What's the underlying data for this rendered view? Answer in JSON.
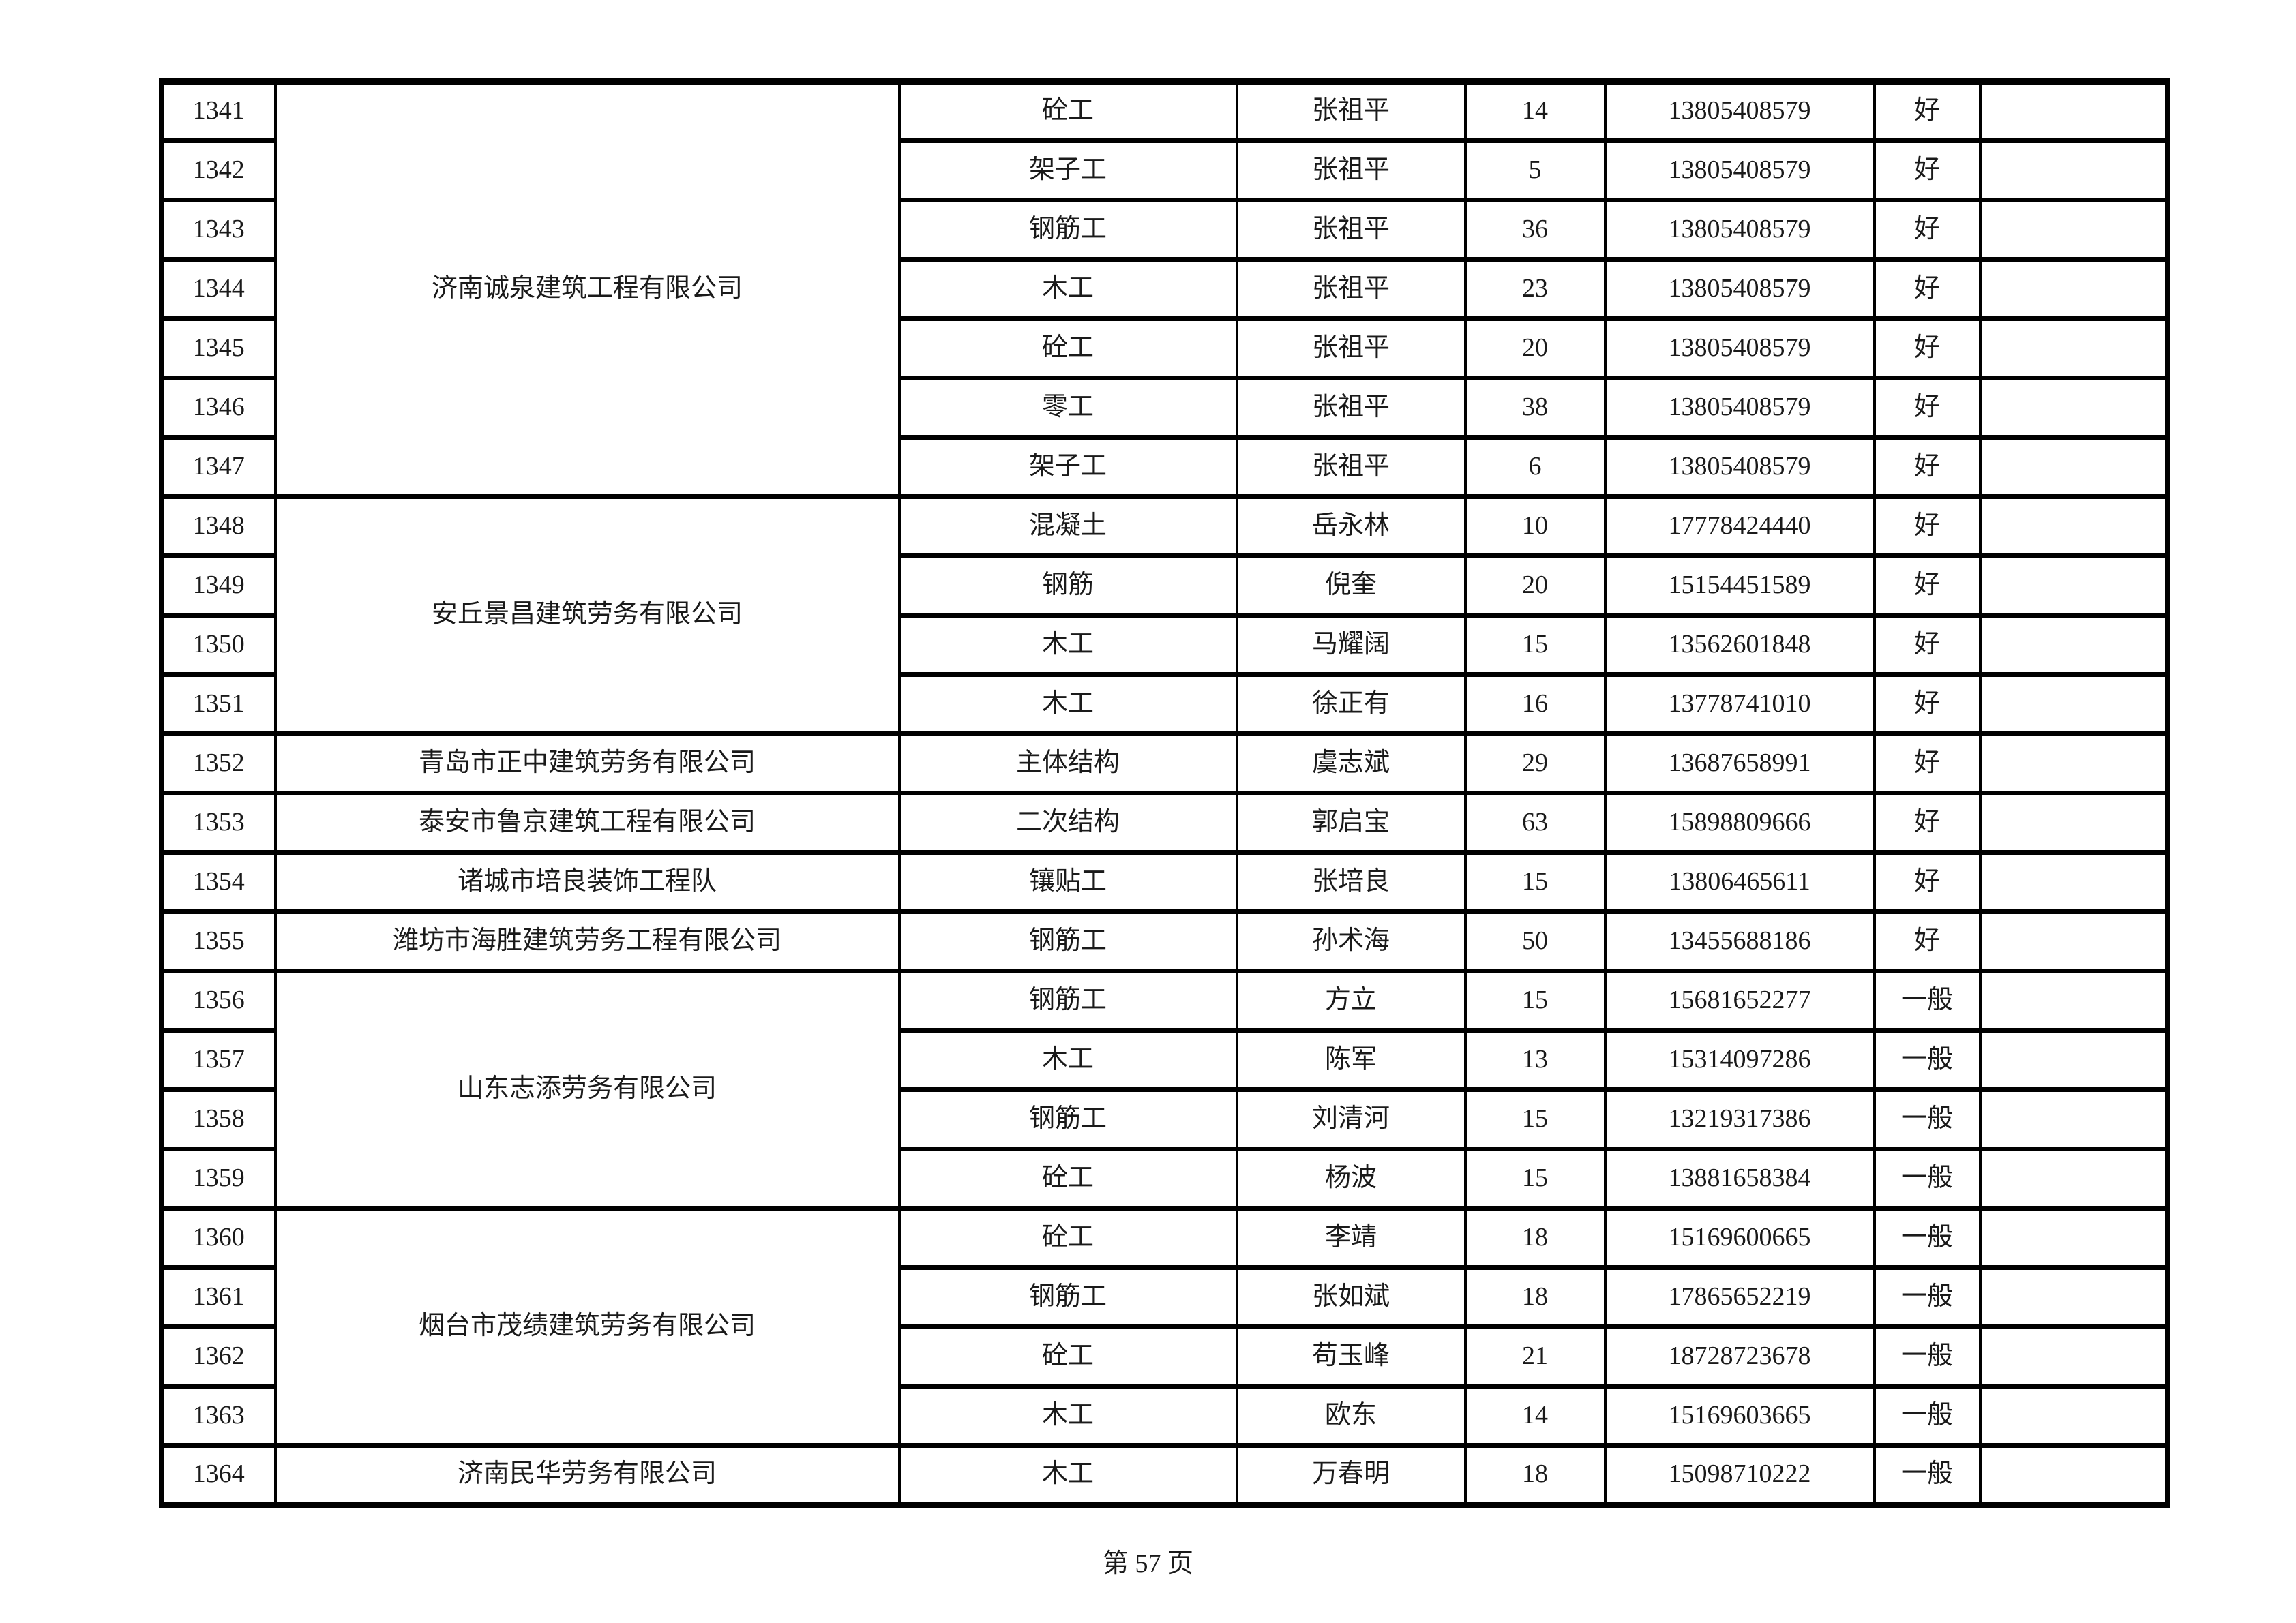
{
  "page": {
    "footer_text": "第 57 页"
  },
  "table": {
    "rows": [
      {
        "no": "1341",
        "company": "济南诚泉建筑工程有限公司",
        "company_rowspan": 7,
        "worktype": "砼工",
        "person": "张祖平",
        "count": "14",
        "phone": "13805408579",
        "rating": "好",
        "note": ""
      },
      {
        "no": "1342",
        "worktype": "架子工",
        "person": "张祖平",
        "count": "5",
        "phone": "13805408579",
        "rating": "好",
        "note": ""
      },
      {
        "no": "1343",
        "worktype": "钢筋工",
        "person": "张祖平",
        "count": "36",
        "phone": "13805408579",
        "rating": "好",
        "note": ""
      },
      {
        "no": "1344",
        "worktype": "木工",
        "person": "张祖平",
        "count": "23",
        "phone": "13805408579",
        "rating": "好",
        "note": ""
      },
      {
        "no": "1345",
        "worktype": "砼工",
        "person": "张祖平",
        "count": "20",
        "phone": "13805408579",
        "rating": "好",
        "note": ""
      },
      {
        "no": "1346",
        "worktype": "零工",
        "person": "张祖平",
        "count": "38",
        "phone": "13805408579",
        "rating": "好",
        "note": ""
      },
      {
        "no": "1347",
        "worktype": "架子工",
        "person": "张祖平",
        "count": "6",
        "phone": "13805408579",
        "rating": "好",
        "note": ""
      },
      {
        "no": "1348",
        "company": "安丘景昌建筑劳务有限公司",
        "company_rowspan": 4,
        "worktype": "混凝土",
        "person": "岳永林",
        "count": "10",
        "phone": "17778424440",
        "rating": "好",
        "note": ""
      },
      {
        "no": "1349",
        "worktype": "钢筋",
        "person": "倪奎",
        "count": "20",
        "phone": "15154451589",
        "rating": "好",
        "note": ""
      },
      {
        "no": "1350",
        "worktype": "木工",
        "person": "马耀阔",
        "count": "15",
        "phone": "13562601848",
        "rating": "好",
        "note": ""
      },
      {
        "no": "1351",
        "worktype": "木工",
        "person": "徐正有",
        "count": "16",
        "phone": "13778741010",
        "rating": "好",
        "note": ""
      },
      {
        "no": "1352",
        "company": "青岛市正中建筑劳务有限公司",
        "company_rowspan": 1,
        "worktype": "主体结构",
        "person": "虞志斌",
        "count": "29",
        "phone": "13687658991",
        "rating": "好",
        "note": ""
      },
      {
        "no": "1353",
        "company": "泰安市鲁京建筑工程有限公司",
        "company_rowspan": 1,
        "worktype": "二次结构",
        "person": "郭启宝",
        "count": "63",
        "phone": "15898809666",
        "rating": "好",
        "note": ""
      },
      {
        "no": "1354",
        "company": "诸城市培良装饰工程队",
        "company_rowspan": 1,
        "worktype": "镶贴工",
        "person": "张培良",
        "count": "15",
        "phone": "13806465611",
        "rating": "好",
        "note": ""
      },
      {
        "no": "1355",
        "company": "潍坊市海胜建筑劳务工程有限公司",
        "company_rowspan": 1,
        "worktype": "钢筋工",
        "person": "孙术海",
        "count": "50",
        "phone": "13455688186",
        "rating": "好",
        "note": ""
      },
      {
        "no": "1356",
        "company": "山东志添劳务有限公司",
        "company_rowspan": 4,
        "worktype": "钢筋工",
        "person": "方立",
        "count": "15",
        "phone": "15681652277",
        "rating": "一般",
        "note": ""
      },
      {
        "no": "1357",
        "worktype": "木工",
        "person": "陈军",
        "count": "13",
        "phone": "15314097286",
        "rating": "一般",
        "note": ""
      },
      {
        "no": "1358",
        "worktype": "钢筋工",
        "person": "刘清河",
        "count": "15",
        "phone": "13219317386",
        "rating": "一般",
        "note": ""
      },
      {
        "no": "1359",
        "worktype": "砼工",
        "person": "杨波",
        "count": "15",
        "phone": "13881658384",
        "rating": "一般",
        "note": ""
      },
      {
        "no": "1360",
        "company": "烟台市茂绩建筑劳务有限公司",
        "company_rowspan": 4,
        "worktype": "砼工",
        "person": "李靖",
        "count": "18",
        "phone": "15169600665",
        "rating": "一般",
        "note": ""
      },
      {
        "no": "1361",
        "worktype": "钢筋工",
        "person": "张如斌",
        "count": "18",
        "phone": "17865652219",
        "rating": "一般",
        "note": ""
      },
      {
        "no": "1362",
        "worktype": "砼工",
        "person": "苟玉峰",
        "count": "21",
        "phone": "18728723678",
        "rating": "一般",
        "note": ""
      },
      {
        "no": "1363",
        "worktype": "木工",
        "person": "欧东",
        "count": "14",
        "phone": "15169603665",
        "rating": "一般",
        "note": ""
      },
      {
        "no": "1364",
        "company": "济南民华劳务有限公司",
        "company_rowspan": 1,
        "worktype": "木工",
        "person": "万春明",
        "count": "18",
        "phone": "15098710222",
        "rating": "一般",
        "note": ""
      }
    ]
  }
}
